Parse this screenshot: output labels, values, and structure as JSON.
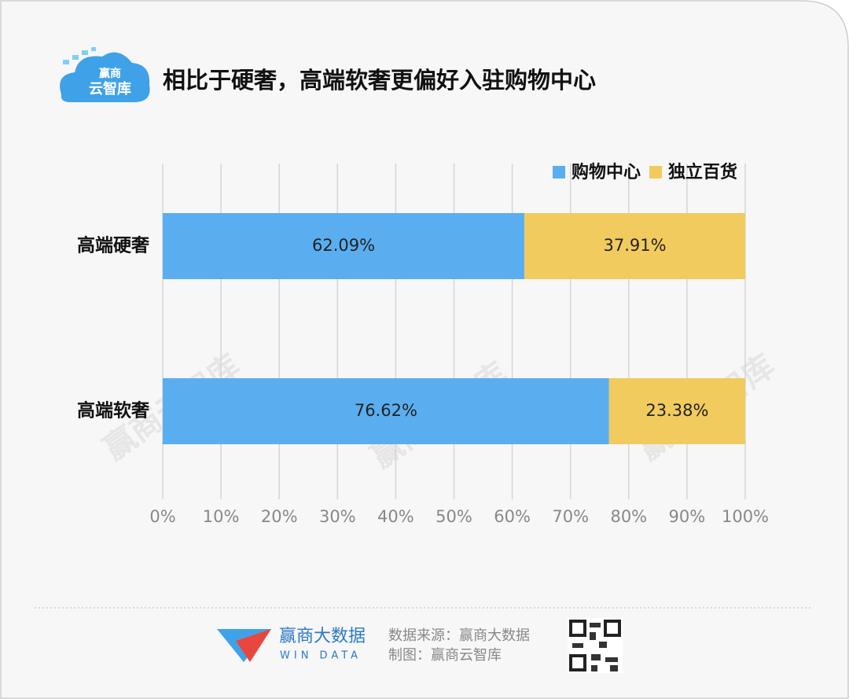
{
  "header": {
    "logo": [
      "赢商",
      "云智库"
    ]
  },
  "watermark": "赢商云智库",
  "chart_data": {
    "type": "bar",
    "orientation": "horizontal",
    "stacked": true,
    "title": "相比于硬奢，高端软奢更偏好入驻购物中心",
    "categories": [
      "高端硬奢",
      "高端软奢"
    ],
    "series": [
      {
        "name": "购物中心",
        "color": "#5aaef0",
        "values": [
          62.09,
          76.62
        ],
        "value_labels": [
          "62.09%",
          "76.62%"
        ]
      },
      {
        "name": "独立百货",
        "color": "#f2cb5e",
        "values": [
          37.91,
          23.38
        ],
        "value_labels": [
          "37.91%",
          "23.38%"
        ]
      }
    ],
    "xlim": [
      0,
      100
    ],
    "xticks": [
      {
        "value": 0,
        "label": "0%"
      },
      {
        "value": 10,
        "label": "10%"
      },
      {
        "value": 20,
        "label": "20%"
      },
      {
        "value": 30,
        "label": "30%"
      },
      {
        "value": 40,
        "label": "40%"
      },
      {
        "value": 50,
        "label": "50%"
      },
      {
        "value": 60,
        "label": "60%"
      },
      {
        "value": 70,
        "label": "70%"
      },
      {
        "value": 80,
        "label": "80%"
      },
      {
        "value": 90,
        "label": "90%"
      },
      {
        "value": 100,
        "label": "100%"
      }
    ],
    "grid": true,
    "legend": "top-right"
  },
  "footer": {
    "brand": "赢商大数据",
    "brand_en": "WIN DATA",
    "source": "数据来源：赢商大数据",
    "maker": "制图：赢商云智库"
  }
}
